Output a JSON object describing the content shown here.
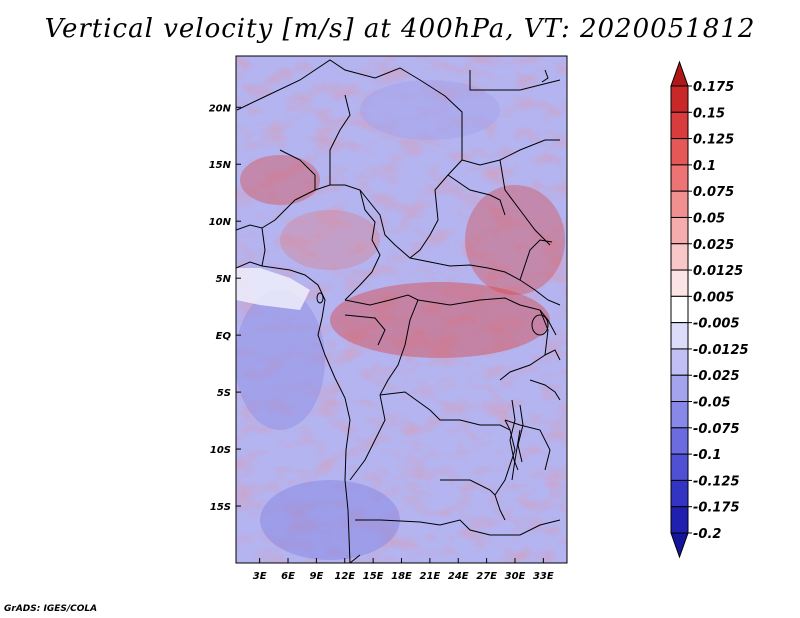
{
  "title": "Vertical velocity [m/s] at 400hPa, VT: 2020051812",
  "footer": "GrADS: IGES/COLA",
  "colors": {
    "ocean_bg": "#b4b4f0",
    "border": "#000000"
  },
  "map": {
    "lat_labels": [
      {
        "text": "20N",
        "lat": 20
      },
      {
        "text": "15N",
        "lat": 15
      },
      {
        "text": "10N",
        "lat": 10
      },
      {
        "text": "5N",
        "lat": 5
      },
      {
        "text": "EQ",
        "lat": 0
      },
      {
        "text": "5S",
        "lat": -5
      },
      {
        "text": "10S",
        "lat": -10
      },
      {
        "text": "15S",
        "lat": -15
      }
    ],
    "lon_labels": [
      {
        "text": "3E",
        "lon": 3
      },
      {
        "text": "6E",
        "lon": 6
      },
      {
        "text": "9E",
        "lon": 9
      },
      {
        "text": "12E",
        "lon": 12
      },
      {
        "text": "15E",
        "lon": 15
      },
      {
        "text": "18E",
        "lon": 18
      },
      {
        "text": "21E",
        "lon": 21
      },
      {
        "text": "24E",
        "lon": 24
      },
      {
        "text": "27E",
        "lon": 27
      },
      {
        "text": "30E",
        "lon": 30
      },
      {
        "text": "33E",
        "lon": 33
      }
    ],
    "lat_range": [
      -20,
      24.5
    ],
    "lon_range": [
      0.5,
      35.5
    ]
  },
  "colorbar": {
    "levels": [
      "0.175",
      "0.15",
      "0.125",
      "0.1",
      "0.075",
      "0.05",
      "0.025",
      "0.0125",
      "0.005",
      "-0.005",
      "-0.0125",
      "-0.025",
      "-0.05",
      "-0.075",
      "-0.1",
      "-0.125",
      "-0.175",
      "-0.2"
    ],
    "colors": [
      "#b01818",
      "#c82828",
      "#d83c3c",
      "#e45858",
      "#ec7474",
      "#f09090",
      "#f4acac",
      "#f8c8c8",
      "#fce4e4",
      "#ffffff",
      "#dcdcf8",
      "#c0c0f4",
      "#a4a4ee",
      "#8888e8",
      "#6c6ce0",
      "#5050d4",
      "#3434c4",
      "#2020b0",
      "#14149c"
    ]
  }
}
